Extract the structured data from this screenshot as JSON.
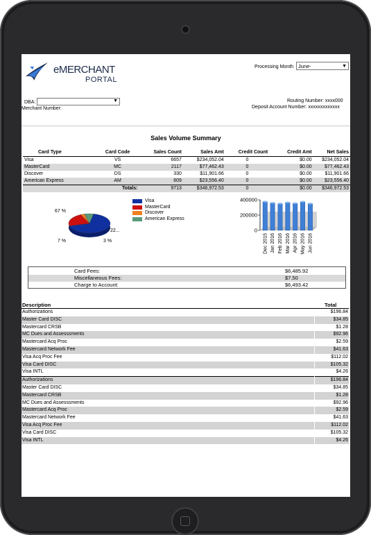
{
  "header": {
    "logo_text1": "eMERCHANT",
    "logo_text2": "PORTAL",
    "processing_month_label": "Processing Month",
    "processing_month_value": "June-",
    "dba_label": "DBA:",
    "merchant_number_label": "Merchant Number:",
    "routing_number_label": "Routing Number: xxxx000",
    "deposit_account_label": "Deposit Account Number: xxxxxxxxxxxxx"
  },
  "summary": {
    "title": "Sales Volume Summary",
    "columns": [
      "Card Type",
      "Card Code",
      "Sales Count",
      "Sales Amt",
      "Credit Count",
      "Credit Amt",
      "Net Sales"
    ],
    "rows": [
      [
        "Visa",
        "VS",
        "6657",
        "$234,052.04",
        "0",
        "$0.00",
        "$234,052.04"
      ],
      [
        "MasterCard",
        "MC",
        "2117",
        "$77,462.43",
        "0",
        "$0.00",
        "$77,462.43"
      ],
      [
        "Discover",
        "DS",
        "330",
        "$11,901.66",
        "0",
        "$0.00",
        "$11,901.66"
      ],
      [
        "American Express",
        "AM",
        "609",
        "$23,556.40",
        "0",
        "$0.00",
        "$23,556.40"
      ]
    ],
    "totals": [
      "Totals:",
      "9713",
      "$346,972.53",
      "0",
      "$0.00",
      "$346,972.53"
    ]
  },
  "chart_data": [
    {
      "type": "pie",
      "labels": [
        "Visa",
        "MasterCard",
        "Discover",
        "American Express"
      ],
      "values": [
        67,
        22,
        3,
        7
      ],
      "data_labels": [
        "67 %",
        "22...",
        "3 %",
        "7 %"
      ],
      "legend": [
        "Visa",
        "MasterCard",
        "Discover",
        "American Express"
      ],
      "colors": [
        "#1030a0",
        "#cc1010",
        "#f08020",
        "#5a9a7a"
      ]
    },
    {
      "type": "bar",
      "categories": [
        "Dec 2015",
        "Jan 2016",
        "Feb 2016",
        "Mar 2016",
        "Apr 2016",
        "May 2016",
        "Jun 2016"
      ],
      "values": [
        375000,
        360000,
        350000,
        365000,
        355000,
        375000,
        350000
      ],
      "yticks": [
        "400000",
        "200000",
        "0"
      ],
      "ylim": [
        0,
        400000
      ],
      "color": "#3f7fd6"
    }
  ],
  "fees": [
    {
      "label": "Card Fees:",
      "value": "$6,485.92"
    },
    {
      "label": "Miscellaneous Fees:",
      "value": "$7.50"
    },
    {
      "label": "Charge to Account:",
      "value": "$6,493.42"
    }
  ],
  "details": {
    "columns": [
      "Description",
      "Total"
    ],
    "rows": [
      [
        "Authorizations",
        "$196.84"
      ],
      [
        "Master Card DISC",
        "$34.85"
      ],
      [
        "Mastercard CRSB",
        "$1.28"
      ],
      [
        "MC Dues and Assesssments",
        "$92.96"
      ],
      [
        "Mastercard Acq Proc",
        "$2.59"
      ],
      [
        "Mastercard Network Fee",
        "$41.63"
      ],
      [
        "Visa Acq Proc Fee",
        "$112.02"
      ],
      [
        "Visa Card DISC",
        "$105.32"
      ],
      [
        "Visa INTL",
        "$4.26"
      ],
      [
        "Authorizations",
        "$196.84"
      ],
      [
        "Master Card DISC",
        "$34.85"
      ],
      [
        "Mastercard CRSB",
        "$1.28"
      ],
      [
        "MC Dues and Assesssments",
        "$92.96"
      ],
      [
        "Mastercard Acq Proc",
        "$2.59"
      ],
      [
        "Mastercard Network Fee",
        "$41.63"
      ],
      [
        "Visa Acq Proc Fee",
        "$112.02"
      ],
      [
        "Visa Card DISC",
        "$105.32"
      ],
      [
        "Visa INTL",
        "$4.26"
      ]
    ]
  }
}
